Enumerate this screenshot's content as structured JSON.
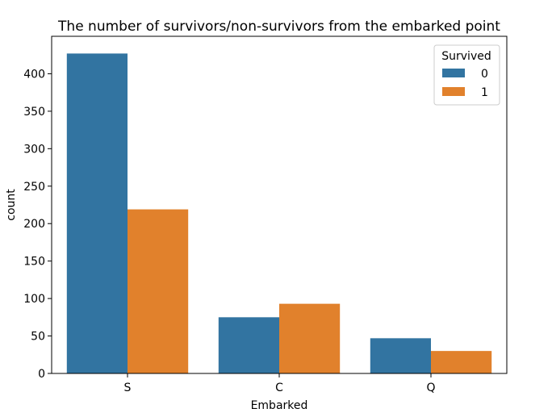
{
  "chart_data": {
    "type": "bar",
    "title": "The number of survivors/non-survivors from the embarked point",
    "xlabel": "Embarked",
    "ylabel": "count",
    "categories": [
      "S",
      "C",
      "Q"
    ],
    "series": [
      {
        "name": "0",
        "values": [
          427,
          75,
          47
        ],
        "color": "#3274a1"
      },
      {
        "name": "1",
        "values": [
          219,
          93,
          30
        ],
        "color": "#e1812c"
      }
    ],
    "ylim": [
      0,
      450
    ],
    "yticks": [
      0,
      50,
      100,
      150,
      200,
      250,
      300,
      350,
      400
    ],
    "legend": {
      "title": "Survived",
      "placement": "top-right"
    },
    "grid": false
  }
}
